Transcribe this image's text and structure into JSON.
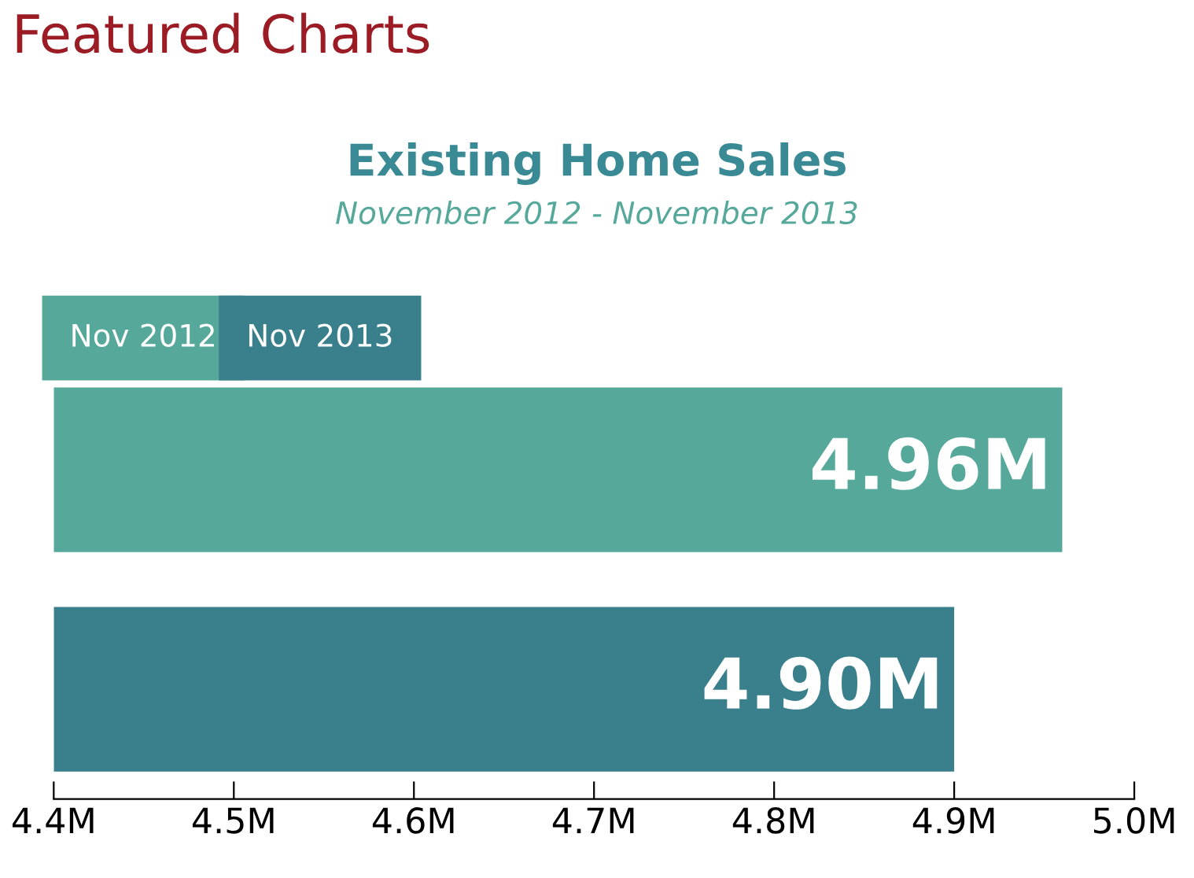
{
  "chart_data": {
    "type": "bar",
    "orientation": "horizontal",
    "title": "Existing Home Sales",
    "subtitle": "November 2012 - November 2013",
    "annotations": [
      "Featured Charts",
      "Nov 2012",
      "Nov 2013"
    ],
    "categories": [
      null,
      null
    ],
    "values": [
      4.96,
      4.9
    ],
    "colors": [
      "#56a99a",
      "#3a7f8c"
    ],
    "value_labels": [
      "4.96M",
      "4.90M"
    ],
    "xlim": [
      4.4,
      5.0
    ],
    "xticks": [
      {
        "value": 4.4,
        "label": "4.4M"
      },
      {
        "value": 4.5,
        "label": "4.5M"
      },
      {
        "value": 4.6,
        "label": "4.6M"
      },
      {
        "value": 4.7,
        "label": "4.7M"
      },
      {
        "value": 4.8,
        "label": "4.8M"
      },
      {
        "value": 4.9,
        "label": "4.9M"
      },
      {
        "value": 5.0,
        "label": "5.0M"
      }
    ],
    "tick_labels": "x",
    "grid": false
  }
}
